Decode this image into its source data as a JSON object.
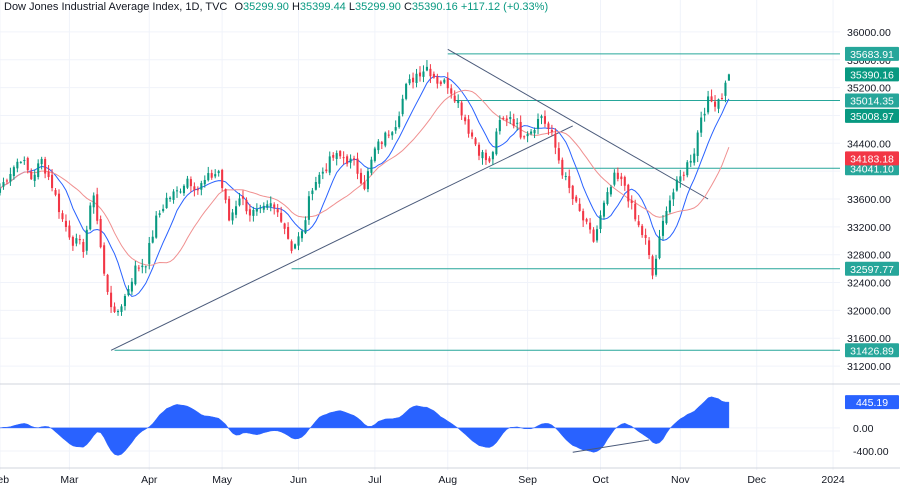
{
  "header": {
    "symbol": "Dow Jones Industrial Average Index, 1D, TVC",
    "o_label": "O",
    "o": "35299.90",
    "h_label": "H",
    "h": "35399.44",
    "l_label": "L",
    "l": "35299.90",
    "c_label": "C",
    "c": "35390.16",
    "change": "+117.12 (+0.33%)"
  },
  "chart_data": {
    "type": "candlestick",
    "price_axis": {
      "ticks": [
        31200,
        31600,
        32000,
        32400,
        32800,
        33200,
        33600,
        34000,
        34400,
        34800,
        35200,
        35600,
        36000
      ],
      "tick_labels": [
        "31200.00",
        "31600.00",
        "32000.00",
        "32400.00",
        "32800.00",
        "33200.00",
        "33600.00",
        "34000.00",
        "34400.00",
        "34800.00",
        "35200.00",
        "35600.00",
        "36000.00"
      ],
      "ylim": [
        31000,
        36200
      ]
    },
    "time_axis": {
      "labels": [
        "Feb",
        "Mar",
        "Apr",
        "May",
        "Jun",
        "Jul",
        "Aug",
        "Sep",
        "Oct",
        "Nov",
        "Dec",
        "2024"
      ],
      "label_index": [
        0,
        20,
        43,
        64,
        86,
        108,
        129,
        152,
        173,
        196,
        218,
        240
      ],
      "x_range": [
        0,
        242
      ]
    },
    "anchors": [
      {
        "i": 0,
        "p": 33750
      },
      {
        "i": 3,
        "p": 34000
      },
      {
        "i": 6,
        "p": 34200
      },
      {
        "i": 9,
        "p": 33900
      },
      {
        "i": 12,
        "p": 34150
      },
      {
        "i": 15,
        "p": 33800
      },
      {
        "i": 18,
        "p": 33300
      },
      {
        "i": 21,
        "p": 33000
      },
      {
        "i": 24,
        "p": 32900
      },
      {
        "i": 27,
        "p": 33700
      },
      {
        "i": 30,
        "p": 32500
      },
      {
        "i": 33,
        "p": 31900
      },
      {
        "i": 36,
        "p": 32200
      },
      {
        "i": 39,
        "p": 32600
      },
      {
        "i": 42,
        "p": 32700
      },
      {
        "i": 45,
        "p": 33300
      },
      {
        "i": 48,
        "p": 33600
      },
      {
        "i": 51,
        "p": 33700
      },
      {
        "i": 54,
        "p": 33900
      },
      {
        "i": 57,
        "p": 33750
      },
      {
        "i": 60,
        "p": 33900
      },
      {
        "i": 63,
        "p": 34000
      },
      {
        "i": 66,
        "p": 33300
      },
      {
        "i": 69,
        "p": 33650
      },
      {
        "i": 72,
        "p": 33400
      },
      {
        "i": 75,
        "p": 33400
      },
      {
        "i": 78,
        "p": 33500
      },
      {
        "i": 81,
        "p": 33350
      },
      {
        "i": 84,
        "p": 32900
      },
      {
        "i": 87,
        "p": 33100
      },
      {
        "i": 90,
        "p": 33800
      },
      {
        "i": 93,
        "p": 34000
      },
      {
        "i": 96,
        "p": 34200
      },
      {
        "i": 99,
        "p": 34200
      },
      {
        "i": 102,
        "p": 34100
      },
      {
        "i": 105,
        "p": 33800
      },
      {
        "i": 108,
        "p": 34300
      },
      {
        "i": 111,
        "p": 34500
      },
      {
        "i": 114,
        "p": 34700
      },
      {
        "i": 117,
        "p": 35200
      },
      {
        "i": 120,
        "p": 35400
      },
      {
        "i": 123,
        "p": 35500
      },
      {
        "i": 126,
        "p": 35300
      },
      {
        "i": 129,
        "p": 35250
      },
      {
        "i": 132,
        "p": 35000
      },
      {
        "i": 135,
        "p": 34600
      },
      {
        "i": 138,
        "p": 34300
      },
      {
        "i": 141,
        "p": 34100
      },
      {
        "i": 144,
        "p": 34700
      },
      {
        "i": 147,
        "p": 34800
      },
      {
        "i": 150,
        "p": 34550
      },
      {
        "i": 153,
        "p": 34600
      },
      {
        "i": 156,
        "p": 34800
      },
      {
        "i": 159,
        "p": 34500
      },
      {
        "i": 162,
        "p": 34000
      },
      {
        "i": 165,
        "p": 33600
      },
      {
        "i": 168,
        "p": 33300
      },
      {
        "i": 171,
        "p": 33000
      },
      {
        "i": 174,
        "p": 33500
      },
      {
        "i": 177,
        "p": 33900
      },
      {
        "i": 180,
        "p": 33800
      },
      {
        "i": 183,
        "p": 33300
      },
      {
        "i": 186,
        "p": 33000
      },
      {
        "i": 188,
        "p": 32500
      },
      {
        "i": 190,
        "p": 33000
      },
      {
        "i": 192,
        "p": 33500
      },
      {
        "i": 194,
        "p": 33700
      },
      {
        "i": 196,
        "p": 33900
      },
      {
        "i": 198,
        "p": 34100
      },
      {
        "i": 200,
        "p": 34300
      },
      {
        "i": 202,
        "p": 34800
      },
      {
        "i": 204,
        "p": 35000
      },
      {
        "i": 206,
        "p": 35000
      },
      {
        "i": 208,
        "p": 35100
      },
      {
        "i": 210,
        "p": 35390
      }
    ],
    "candle_count": 211,
    "last_candle": {
      "o": 35299.9,
      "h": 35399.44,
      "l": 35299.9,
      "c": 35390.16
    },
    "horizontal_levels": [
      {
        "value": 35683.91,
        "label": "35683.91",
        "color": "#26a69a"
      },
      {
        "value": 35014.35,
        "label": "35014.35",
        "color": "#26a69a"
      },
      {
        "value": 34041.1,
        "label": "34041.10",
        "color": "#26a69a"
      },
      {
        "value": 32597.77,
        "label": "32597.77",
        "color": "#26a69a"
      },
      {
        "value": 31426.89,
        "label": "31426.89",
        "color": "#26a69a"
      }
    ],
    "price_labels": [
      {
        "value": 35390.16,
        "label": "35390.16",
        "color": "#089981"
      },
      {
        "value": 35008.97,
        "label": "35008.97",
        "color": "#089981"
      },
      {
        "value": 34183.18,
        "label": "34183.18",
        "color": "#f23645"
      }
    ],
    "trendlines": [
      {
        "from": {
          "i": 32,
          "p": 31426.89
        },
        "to": {
          "i": 165,
          "p": 34650
        },
        "color": "#4a5a7a"
      },
      {
        "from": {
          "i": 129,
          "p": 35750
        },
        "to": {
          "i": 204,
          "p": 33600
        },
        "color": "#4a5a7a"
      }
    ],
    "moving_averages": [
      {
        "period": 9,
        "color": "#2962ff"
      },
      {
        "period": 21,
        "color": "#f09090"
      }
    ],
    "oscillator": {
      "type": "area",
      "value": 445.19,
      "value_label": "445.19",
      "ticks": [
        0,
        -400
      ],
      "tick_labels": [
        "0.00",
        "-400.00"
      ],
      "ylim": [
        -520,
        620
      ],
      "color": "#2962ff",
      "divergence_line": {
        "from": {
          "i": 165,
          "v": -420
        },
        "to": {
          "i": 187,
          "v": -210
        }
      }
    },
    "colors": {
      "up": "#089981",
      "down": "#f23645",
      "level": "#26a69a",
      "grid": "#f0f3fa"
    }
  }
}
